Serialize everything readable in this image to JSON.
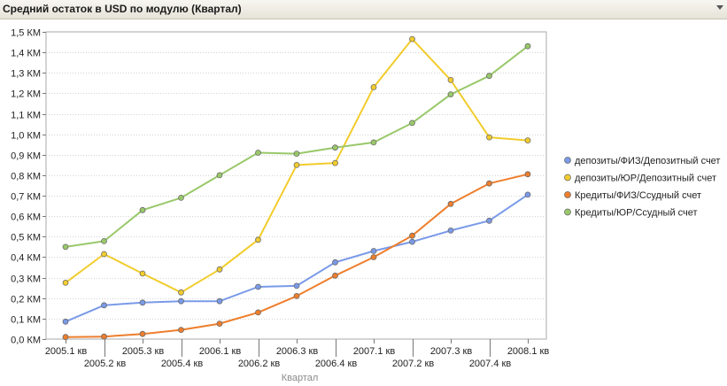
{
  "window": {
    "title": "Средний остаток в USD по модулю (Квартал)"
  },
  "chart_data": {
    "type": "line",
    "title": "Средний остаток в USD по модулю (Квартал)",
    "xlabel": "Квартал",
    "ylabel": "",
    "categories": [
      "2005.1 кв",
      "2005.2 кв",
      "2005.3 кв",
      "2005.4 кв",
      "2006.1 кв",
      "2006.2 кв",
      "2006.3 кв",
      "2006.4 кв",
      "2007.1 кв",
      "2007.2 кв",
      "2007.3 кв",
      "2007.4 кв",
      "2008.1 кв"
    ],
    "y_ticks": [
      {
        "value": 0.0,
        "label": "0,0 КМ"
      },
      {
        "value": 0.1,
        "label": "0,1 КМ"
      },
      {
        "value": 0.2,
        "label": "0,2 КМ"
      },
      {
        "value": 0.3,
        "label": "0,3 КМ"
      },
      {
        "value": 0.4,
        "label": "0,4 КМ"
      },
      {
        "value": 0.5,
        "label": "0,5 КМ"
      },
      {
        "value": 0.6,
        "label": "0,6 КМ"
      },
      {
        "value": 0.7,
        "label": "0,7 КМ"
      },
      {
        "value": 0.8,
        "label": "0,8 КМ"
      },
      {
        "value": 0.9,
        "label": "0,9 КМ"
      },
      {
        "value": 1.0,
        "label": "1,0 КМ"
      },
      {
        "value": 1.1,
        "label": "1,1 КМ"
      },
      {
        "value": 1.2,
        "label": "1,2 КМ"
      },
      {
        "value": 1.3,
        "label": "1,3 КМ"
      },
      {
        "value": 1.4,
        "label": "1,4 КМ"
      },
      {
        "value": 1.5,
        "label": "1,5 КМ"
      }
    ],
    "ylim": [
      0,
      1.5
    ],
    "grid": true,
    "legend_position": "right",
    "series": [
      {
        "name": "депозиты/ФИЗ/Депозитный счет",
        "color": "#7a9ae8",
        "values": [
          0.085,
          0.165,
          0.178,
          0.185,
          0.185,
          0.255,
          0.26,
          0.375,
          0.43,
          0.475,
          0.53,
          0.578,
          0.705
        ]
      },
      {
        "name": "депозиты/ЮР/Депозитный счет",
        "color": "#f2cc2c",
        "values": [
          0.275,
          0.415,
          0.32,
          0.228,
          0.34,
          0.485,
          0.85,
          0.86,
          1.23,
          1.465,
          1.265,
          0.985,
          0.97
        ]
      },
      {
        "name": "Кредиты/ФИЗ/Ссудный счет",
        "color": "#ee7e2c",
        "values": [
          0.01,
          0.012,
          0.025,
          0.045,
          0.075,
          0.13,
          0.21,
          0.31,
          0.4,
          0.505,
          0.66,
          0.76,
          0.805
        ]
      },
      {
        "name": "Кредиты/ЮР/Ссудный счет",
        "color": "#99c86a",
        "values": [
          0.45,
          0.478,
          0.63,
          0.69,
          0.8,
          0.91,
          0.905,
          0.935,
          0.96,
          1.055,
          1.195,
          1.285,
          1.43
        ]
      }
    ]
  }
}
